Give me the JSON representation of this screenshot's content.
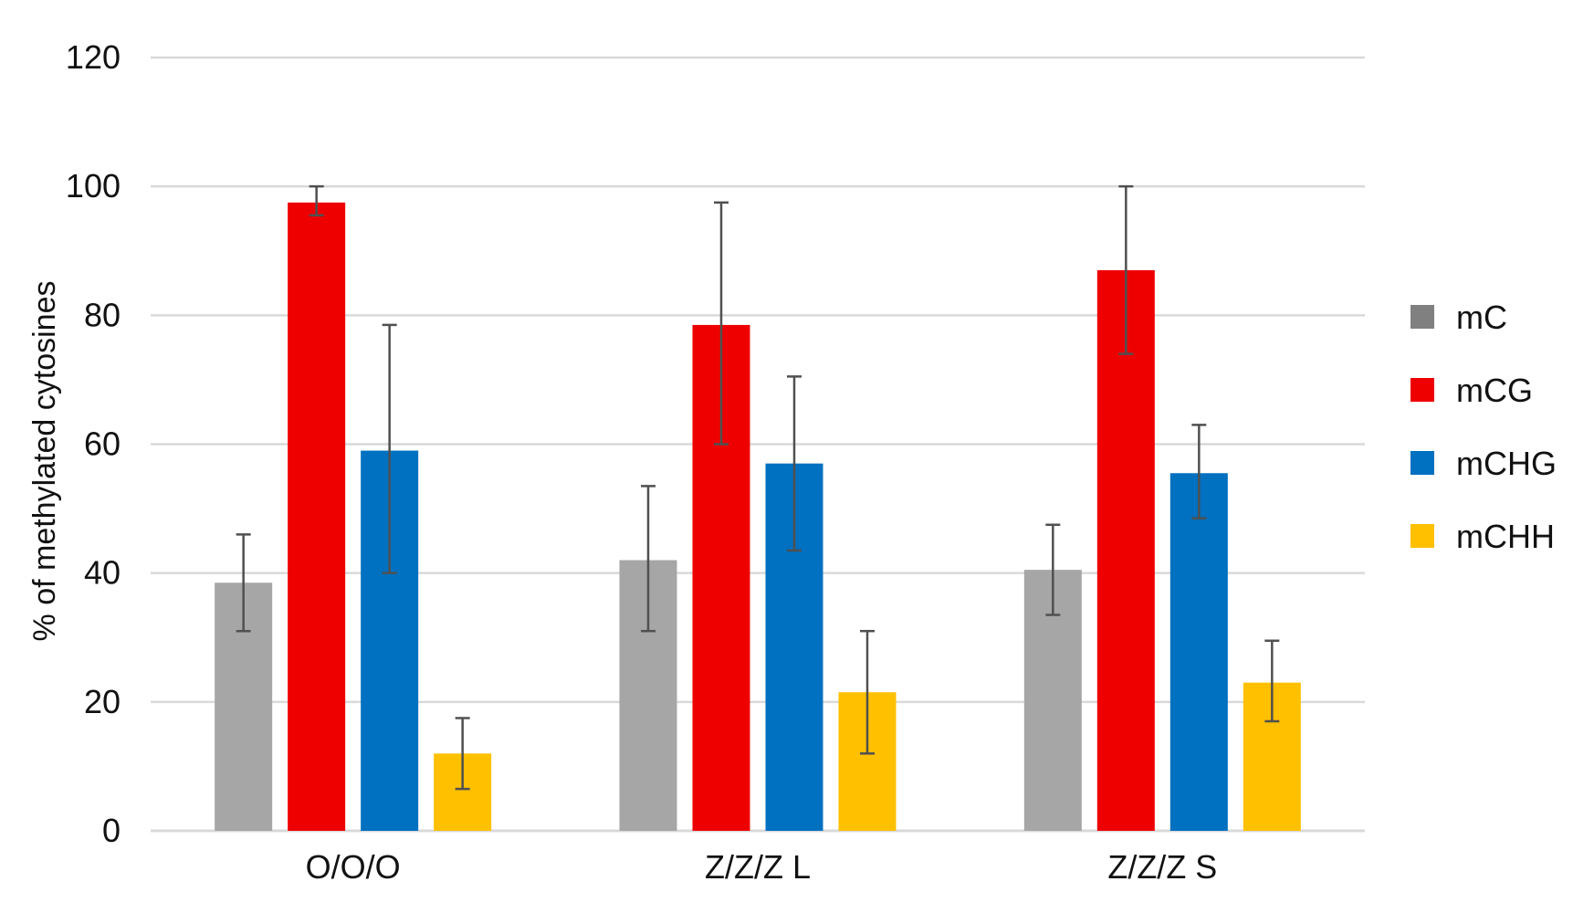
{
  "chart_data": {
    "type": "bar",
    "title": "",
    "xlabel": "",
    "ylabel": "% of methylated cytosines",
    "ylim": [
      0,
      120
    ],
    "yticks": [
      0,
      20,
      40,
      60,
      80,
      100,
      120
    ],
    "grid": true,
    "legend_position": "right",
    "categories": [
      "O/O/O",
      "Z/Z/Z L",
      "Z/Z/Z S"
    ],
    "series": [
      {
        "name": "mC",
        "color": "#A6A6A6",
        "legend_color": "#808080",
        "values": [
          38.5,
          42,
          40.5
        ],
        "error_low": [
          31,
          31,
          33.5
        ],
        "error_high": [
          46,
          53.5,
          47.5
        ]
      },
      {
        "name": "mCG",
        "color": "#EE0000",
        "legend_color": "#EE0000",
        "values": [
          97.5,
          78.5,
          87
        ],
        "error_low": [
          95.5,
          60,
          74
        ],
        "error_high": [
          100,
          97.5,
          100
        ]
      },
      {
        "name": "mCHG",
        "color": "#0070C0",
        "legend_color": "#0070C0",
        "values": [
          59,
          57,
          55.5
        ],
        "error_low": [
          40,
          43.5,
          48.5
        ],
        "error_high": [
          78.5,
          70.5,
          63
        ]
      },
      {
        "name": "mCHH",
        "color": "#FFC000",
        "legend_color": "#FFC000",
        "values": [
          12,
          21.5,
          23
        ],
        "error_low": [
          6.5,
          12,
          17
        ],
        "error_high": [
          17.5,
          31,
          29.5
        ]
      }
    ]
  }
}
